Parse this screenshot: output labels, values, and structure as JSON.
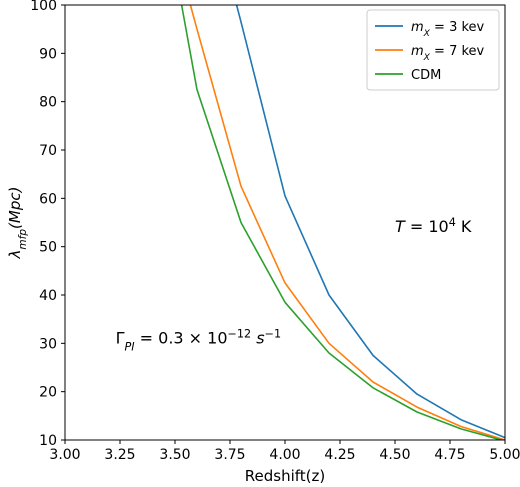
{
  "chart_data": {
    "type": "line",
    "xlabel": "Redshift(z)",
    "ylabel": "λ_mfp(Mpc)",
    "xlim": [
      3.0,
      5.0
    ],
    "ylim": [
      10,
      100
    ],
    "xticks": [
      "3.00",
      "3.25",
      "3.50",
      "3.75",
      "4.00",
      "4.25",
      "4.50",
      "4.75",
      "5.00"
    ],
    "yticks": [
      "10",
      "20",
      "30",
      "40",
      "50",
      "60",
      "70",
      "80",
      "90",
      "100"
    ],
    "grid": false,
    "legend_position": "top-right",
    "series": [
      {
        "name": "m_X = 3 kev",
        "color": "#1f77b4",
        "x": [
          3.78,
          3.8,
          4.0,
          4.2,
          4.4,
          4.6,
          4.8,
          5.0
        ],
        "y": [
          100,
          96.5,
          60.5,
          40.0,
          27.5,
          19.5,
          14.2,
          10.5
        ]
      },
      {
        "name": "m_X = 7 kev",
        "color": "#ff7f0e",
        "x": [
          3.57,
          3.6,
          3.8,
          4.0,
          4.2,
          4.4,
          4.6,
          4.8,
          5.0
        ],
        "y": [
          100,
          95.0,
          62.5,
          42.5,
          30.0,
          22.0,
          16.8,
          12.8,
          10.0
        ]
      },
      {
        "name": "CDM",
        "color": "#2ca02c",
        "x": [
          3.53,
          3.6,
          3.8,
          4.0,
          4.2,
          4.4,
          4.6,
          4.8,
          5.0
        ],
        "y": [
          100,
          82.5,
          55.0,
          38.5,
          28.0,
          20.8,
          15.8,
          12.3,
          9.8
        ]
      }
    ],
    "annotations": [
      {
        "name": "temperature",
        "text": "T = 10⁴ K",
        "x": 4.5,
        "y": 53
      },
      {
        "name": "photoionization-rate",
        "text": "Γ_PI = 0.3 × 10⁻¹² s⁻¹",
        "x": 3.23,
        "y": 30
      }
    ]
  }
}
